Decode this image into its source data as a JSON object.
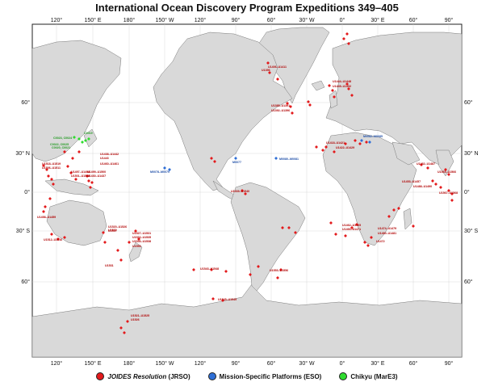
{
  "title": "International Ocean Discovery Program Expeditions 349–405",
  "colors": {
    "land": "#d9d9d9",
    "land_stroke": "#7a7a7a",
    "ocean": "#ffffff",
    "grid": "#c8c8c8",
    "jr": "#e31a1c",
    "eso": "#2f6fd6",
    "chikyu": "#2fdc2f"
  },
  "axes": {
    "top_lon_labels": [
      "120°",
      "150° E",
      "180°",
      "150° W",
      "120°",
      "90°",
      "60°",
      "30° W",
      "0°",
      "30° E",
      "60°",
      "90°"
    ],
    "bottom_lon_labels": [
      "120°",
      "150° E",
      "180°",
      "150° W",
      "120°",
      "90°",
      "60°",
      "30° W",
      "0°",
      "30° E",
      "60°",
      "90°"
    ],
    "lat_labels": [
      "60°",
      "30° N",
      "0°",
      "30° S",
      "60°"
    ]
  },
  "legend": [
    {
      "pre": "",
      "italic": "JOIDES Resolution",
      "post": " (JRSO)",
      "color_key": "jr"
    },
    {
      "pre": "Mission-Specific Platforms (ESO)",
      "italic": "",
      "post": "",
      "color_key": "eso"
    },
    {
      "pre": "Chikyu (MarE3)",
      "italic": "",
      "post": "",
      "color_key": "chikyu"
    }
  ],
  "site_labels": [
    {
      "text": "U1518–U1519",
      "platform": "jr"
    },
    {
      "text": "U1506–U1511",
      "platform": "jr"
    },
    {
      "text": "U1497–U1498",
      "platform": "jr"
    },
    {
      "text": "U1501–U1505",
      "platform": "jr"
    },
    {
      "text": "U1499–U1500",
      "platform": "jr"
    },
    {
      "text": "U1430–U1437",
      "platform": "jr"
    },
    {
      "text": "U1438–U1442",
      "platform": "jr"
    },
    {
      "text": "U1443",
      "platform": "jr"
    },
    {
      "text": "U1460–U1461",
      "platform": "jr"
    },
    {
      "text": "U1512–U1516",
      "platform": "jr"
    },
    {
      "text": "U1458–U1459",
      "platform": "jr"
    },
    {
      "text": "U1520–U1526",
      "platform": "jr"
    },
    {
      "text": "U1517",
      "platform": "jr"
    },
    {
      "text": "U1527–U1531",
      "platform": "jr"
    },
    {
      "text": "U1532–U1535",
      "platform": "jr"
    },
    {
      "text": "U1536–U1538",
      "platform": "jr"
    },
    {
      "text": "U1521–U1525",
      "platform": "jr"
    },
    {
      "text": "U1526",
      "platform": "jr"
    },
    {
      "text": "U1543–U1548",
      "platform": "jr"
    },
    {
      "text": "U1539–U1540",
      "platform": "jr"
    },
    {
      "text": "U1531",
      "platform": "jr"
    },
    {
      "text": "U1532",
      "platform": "jr"
    },
    {
      "text": "U1553",
      "platform": "jr"
    },
    {
      "text": "U1545–U1549",
      "platform": "jr"
    },
    {
      "text": "U1385–U1391",
      "platform": "jr"
    },
    {
      "text": "U1392–U1396",
      "platform": "jr"
    },
    {
      "text": "U1553–U1556",
      "platform": "jr"
    },
    {
      "text": "U1474–U1479",
      "platform": "jr"
    },
    {
      "text": "U1480–U1481",
      "platform": "jr"
    },
    {
      "text": "U1462–U1465",
      "platform": "jr"
    },
    {
      "text": "U1466–U1471",
      "platform": "jr"
    },
    {
      "text": "U1472",
      "platform": "jr"
    },
    {
      "text": "U1482–U1487",
      "platform": "jr"
    },
    {
      "text": "U1488–U1490",
      "platform": "jr"
    },
    {
      "text": "U1453–U1457",
      "platform": "jr"
    },
    {
      "text": "U1444–U1448",
      "platform": "jr"
    },
    {
      "text": "U1449–U1452",
      "platform": "jr"
    },
    {
      "text": "U1406–U1411",
      "platform": "jr"
    },
    {
      "text": "U1418–U1421",
      "platform": "jr"
    },
    {
      "text": "U1422–U1429",
      "platform": "jr"
    },
    {
      "text": "U1565–U1566",
      "platform": "jr"
    },
    {
      "text": "U1567–U1568",
      "platform": "jr"
    },
    {
      "text": "U1356",
      "platform": "jr"
    },
    {
      "text": "M0077",
      "platform": "eso"
    },
    {
      "text": "M0078–M0079",
      "platform": "eso"
    },
    {
      "text": "M0080–M0081",
      "platform": "eso"
    },
    {
      "text": "M0082–M0085",
      "platform": "eso"
    },
    {
      "text": "C0023, C0024",
      "platform": "chikyu"
    },
    {
      "text": "C0019",
      "platform": "chikyu"
    },
    {
      "text": "C0022, C0025",
      "platform": "chikyu"
    },
    {
      "text": "C0020, C0021",
      "platform": "chikyu"
    }
  ]
}
